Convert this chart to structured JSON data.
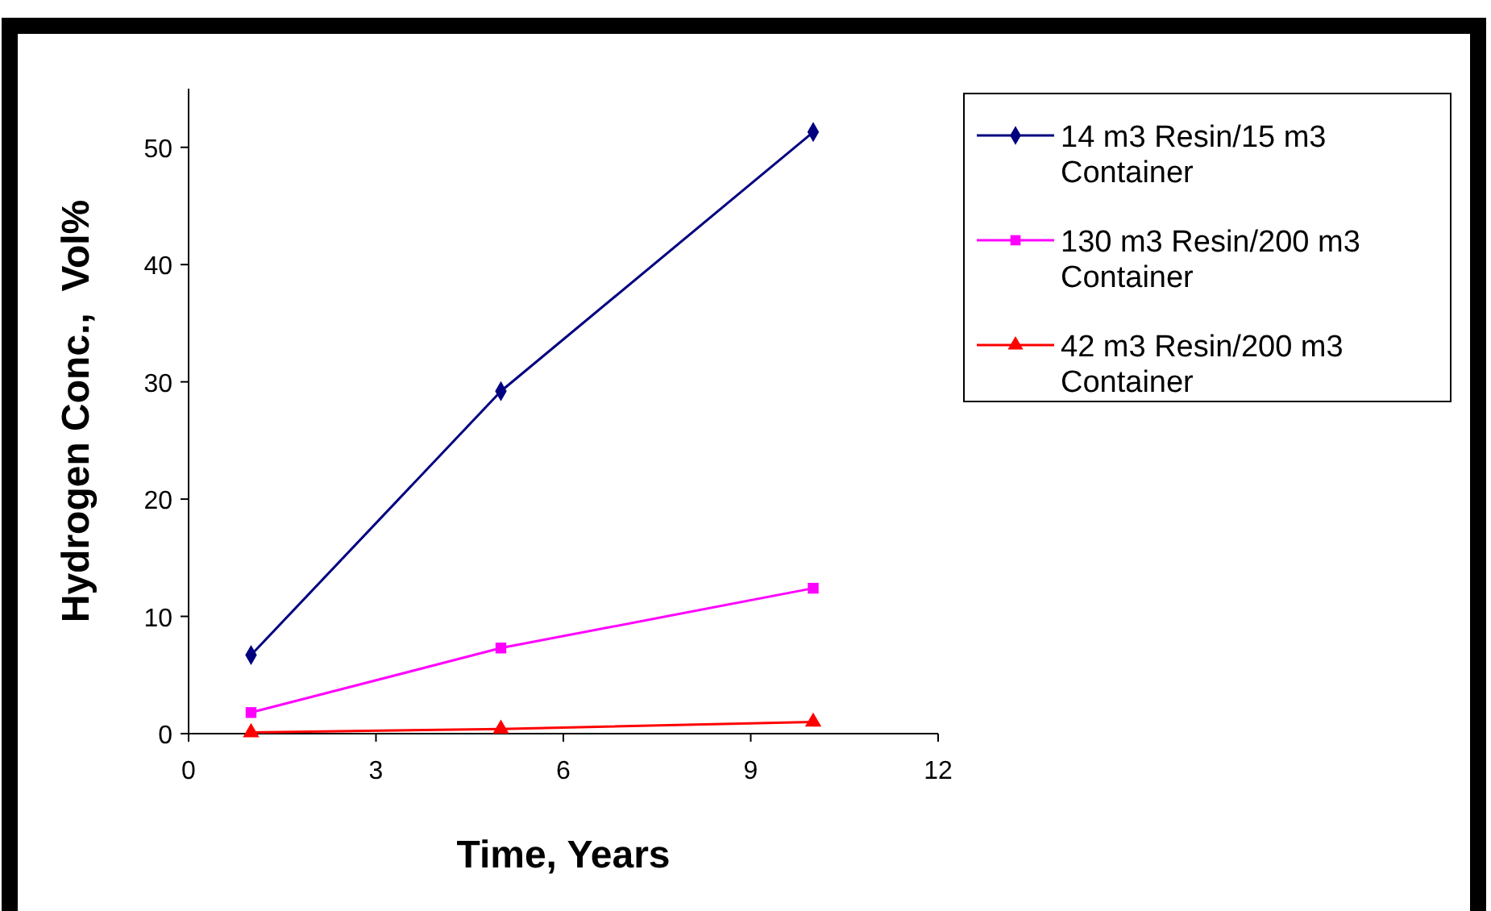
{
  "chart_data": {
    "type": "line",
    "xlabel": "Time, Years",
    "ylabel": "Hydrogen Conc.,  Vol%",
    "x": [
      1,
      5,
      10
    ],
    "series": [
      {
        "name": "14 m3 Resin/15 m3 Container",
        "color": "#000080",
        "values": [
          6.7,
          29.2,
          51.3
        ],
        "marker": "diamond"
      },
      {
        "name": "130 m3 Resin/200 m3 Container",
        "color": "#ff00ff",
        "values": [
          1.8,
          7.3,
          12.4
        ],
        "marker": "square"
      },
      {
        "name": "42 m3 Resin/200 m3 Container",
        "color": "#ff0000",
        "values": [
          0.1,
          0.4,
          1.0
        ],
        "marker": "triangle"
      }
    ],
    "xlim": [
      0,
      12
    ],
    "xticks": [
      0,
      3,
      6,
      9,
      12
    ],
    "ylim": [
      0,
      55
    ],
    "yticks": [
      0,
      10,
      20,
      30,
      40,
      50
    ],
    "grid": false,
    "legend": "right",
    "line_style": "solid"
  }
}
